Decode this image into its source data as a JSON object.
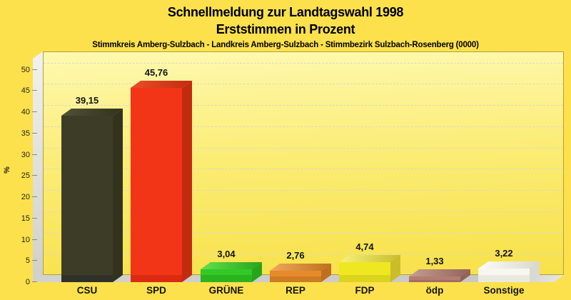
{
  "header": {
    "title_line1": "Schnellmeldung zur Landtagswahl 1998",
    "title_line2": "Erststimmen in Prozent",
    "subtitle": "Stimmkreis Amberg-Sulzbach - Landkreis Amberg-Sulzbach - Stimmbezirk Sulzbach-Rosenberg (0000)"
  },
  "colors": {
    "page_background": "#FCE14D",
    "wall_gradient_top": "#FEF9B0",
    "wall_gradient_bottom": "#F8E14A",
    "wall_border": "#AFA13E",
    "gridline": "#D9D9C9",
    "side_wall": "#E3E3E0",
    "floor": "#CCCCC8",
    "text": "#000000"
  },
  "chart_data": {
    "type": "bar",
    "style": "3d-bars",
    "title": "Schnellmeldung zur Landtagswahl 1998",
    "subtitle": "Erststimmen in Prozent",
    "region_line": "Stimmkreis Amberg-Sulzbach - Landkreis Amberg-Sulzbach - Stimmbezirk Sulzbach-Rosenberg (0000)",
    "xlabel": "",
    "ylabel": "%",
    "ylim": [
      0,
      50
    ],
    "ytick_step": 5,
    "yticks": [
      0,
      5,
      10,
      15,
      20,
      25,
      30,
      35,
      40,
      45,
      50
    ],
    "grid": "horizontal-dashed",
    "legend": "none",
    "categories": [
      "CSU",
      "SPD",
      "GRÜNE",
      "REP",
      "FDP",
      "ödp",
      "Sonstige"
    ],
    "values": [
      39.15,
      45.76,
      3.04,
      2.76,
      4.74,
      1.33,
      3.22
    ],
    "value_labels": [
      "39,15",
      "45,76",
      "3,04",
      "2,76",
      "4,74",
      "1,33",
      "3,22"
    ],
    "bars": [
      {
        "key": "csu",
        "party": "CSU",
        "front": "#3D3D27",
        "top": "#515137",
        "side": "#32321E",
        "base": "#30302B"
      },
      {
        "key": "spd",
        "party": "SPD",
        "front": "#F23517",
        "top": "#EA4C29",
        "side": "#C32B10",
        "base": "#DA2B12"
      },
      {
        "key": "gruene",
        "party": "GRÜNE",
        "front": "#33C926",
        "top": "#63E04B",
        "side": "#28A41C",
        "base": "#2BB31F"
      },
      {
        "key": "rep",
        "party": "REP",
        "front": "#E68A2B",
        "top": "#F0A85C",
        "side": "#BF6F1E",
        "base": "#CF7B24"
      },
      {
        "key": "fdp",
        "party": "FDP",
        "front": "#EFE821",
        "top": "#F6F37C",
        "side": "#C9BD2B",
        "base": "#DCD31D"
      },
      {
        "key": "oedp",
        "party": "ödp",
        "front": "#B27D72",
        "top": "#C79C92",
        "side": "#92635A",
        "base": "#A26D62"
      },
      {
        "key": "sonstige",
        "party": "Sonstige",
        "front": "#F7F7EF",
        "top": "#FCFCF7",
        "side": "#D9D9D1",
        "base": "#E9E9E0"
      }
    ]
  }
}
